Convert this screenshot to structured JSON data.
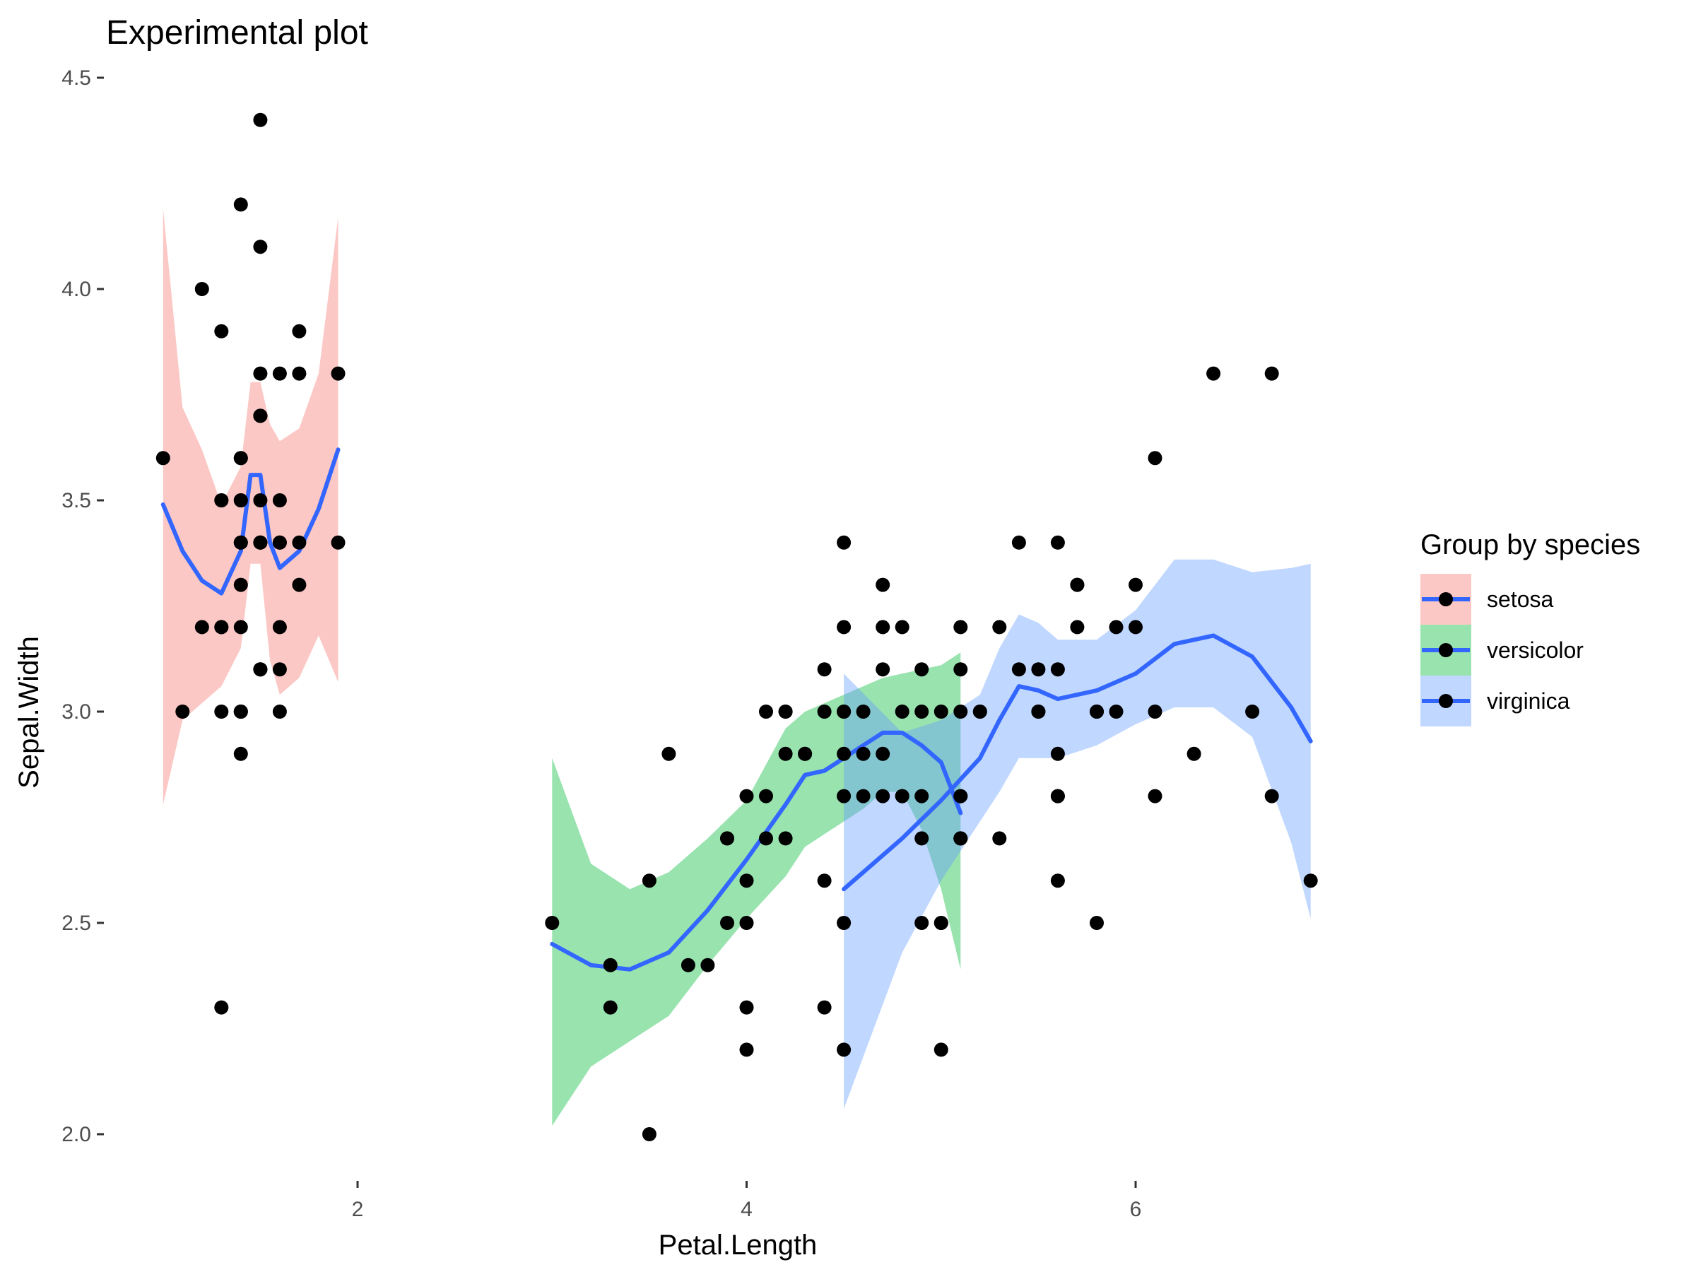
{
  "chart_data": {
    "type": "scatter",
    "title": "Experimental plot",
    "xlabel": "Petal.Length",
    "ylabel": "Sepal.Width",
    "xlim": [
      0.7,
      7.1
    ],
    "ylim": [
      1.9,
      4.55
    ],
    "x_ticks": [
      2,
      4,
      6
    ],
    "y_ticks": [
      2.0,
      2.5,
      3.0,
      3.5,
      4.0,
      4.5
    ],
    "x_tick_labels": [
      "2",
      "4",
      "6"
    ],
    "y_tick_labels": [
      "2.0",
      "2.5",
      "3.0",
      "3.5",
      "4.0",
      "4.5"
    ],
    "grid": false,
    "legend": {
      "title": "Group by species",
      "position": "right"
    },
    "colors": {
      "point": "#000000",
      "smooth_line": "#3366FF"
    },
    "series": [
      {
        "name": "setosa",
        "fill": "#F8766D",
        "points": [
          [
            1.4,
            3.5
          ],
          [
            1.4,
            3.0
          ],
          [
            1.3,
            3.2
          ],
          [
            1.5,
            3.1
          ],
          [
            1.4,
            3.6
          ],
          [
            1.7,
            3.9
          ],
          [
            1.4,
            3.4
          ],
          [
            1.5,
            3.4
          ],
          [
            1.4,
            2.9
          ],
          [
            1.5,
            3.1
          ],
          [
            1.5,
            3.7
          ],
          [
            1.6,
            3.4
          ],
          [
            1.4,
            3.0
          ],
          [
            1.1,
            3.0
          ],
          [
            1.2,
            4.0
          ],
          [
            1.5,
            4.4
          ],
          [
            1.3,
            3.9
          ],
          [
            1.4,
            3.5
          ],
          [
            1.7,
            3.8
          ],
          [
            1.5,
            3.8
          ],
          [
            1.7,
            3.4
          ],
          [
            1.5,
            3.7
          ],
          [
            1.0,
            3.6
          ],
          [
            1.7,
            3.3
          ],
          [
            1.9,
            3.4
          ],
          [
            1.6,
            3.0
          ],
          [
            1.6,
            3.4
          ],
          [
            1.5,
            3.5
          ],
          [
            1.4,
            3.4
          ],
          [
            1.6,
            3.2
          ],
          [
            1.6,
            3.1
          ],
          [
            1.5,
            3.4
          ],
          [
            1.5,
            4.1
          ],
          [
            1.4,
            4.2
          ],
          [
            1.5,
            3.1
          ],
          [
            1.2,
            3.2
          ],
          [
            1.3,
            3.5
          ],
          [
            1.4,
            3.6
          ],
          [
            1.3,
            3.0
          ],
          [
            1.5,
            3.4
          ],
          [
            1.3,
            3.5
          ],
          [
            1.3,
            2.3
          ],
          [
            1.3,
            3.2
          ],
          [
            1.6,
            3.5
          ],
          [
            1.9,
            3.8
          ],
          [
            1.4,
            3.0
          ],
          [
            1.6,
            3.8
          ],
          [
            1.4,
            3.2
          ],
          [
            1.5,
            3.7
          ],
          [
            1.4,
            3.3
          ]
        ],
        "smooth": [
          [
            1.0,
            3.49
          ],
          [
            1.1,
            3.38
          ],
          [
            1.2,
            3.31
          ],
          [
            1.3,
            3.28
          ],
          [
            1.4,
            3.38
          ],
          [
            1.45,
            3.56
          ],
          [
            1.5,
            3.56
          ],
          [
            1.55,
            3.4
          ],
          [
            1.6,
            3.34
          ],
          [
            1.7,
            3.38
          ],
          [
            1.8,
            3.48
          ],
          [
            1.9,
            3.62
          ]
        ],
        "band_upper": [
          [
            1.0,
            4.19
          ],
          [
            1.1,
            3.72
          ],
          [
            1.2,
            3.62
          ],
          [
            1.3,
            3.49
          ],
          [
            1.4,
            3.58
          ],
          [
            1.45,
            3.78
          ],
          [
            1.5,
            3.78
          ],
          [
            1.55,
            3.68
          ],
          [
            1.6,
            3.64
          ],
          [
            1.7,
            3.67
          ],
          [
            1.8,
            3.8
          ],
          [
            1.9,
            4.17
          ]
        ],
        "band_lower": [
          [
            1.0,
            2.78
          ],
          [
            1.1,
            2.98
          ],
          [
            1.2,
            3.02
          ],
          [
            1.3,
            3.06
          ],
          [
            1.4,
            3.15
          ],
          [
            1.45,
            3.35
          ],
          [
            1.5,
            3.35
          ],
          [
            1.55,
            3.12
          ],
          [
            1.6,
            3.04
          ],
          [
            1.7,
            3.08
          ],
          [
            1.8,
            3.18
          ],
          [
            1.9,
            3.07
          ]
        ]
      },
      {
        "name": "versicolor",
        "fill": "#00BA38",
        "points": [
          [
            4.7,
            3.2
          ],
          [
            4.5,
            3.2
          ],
          [
            4.9,
            3.1
          ],
          [
            4.0,
            2.3
          ],
          [
            4.6,
            2.8
          ],
          [
            4.5,
            2.8
          ],
          [
            4.7,
            3.3
          ],
          [
            3.3,
            2.4
          ],
          [
            4.6,
            2.9
          ],
          [
            3.9,
            2.7
          ],
          [
            3.5,
            2.0
          ],
          [
            4.2,
            3.0
          ],
          [
            4.0,
            2.2
          ],
          [
            4.7,
            2.9
          ],
          [
            3.6,
            2.9
          ],
          [
            4.4,
            3.1
          ],
          [
            4.5,
            3.0
          ],
          [
            4.1,
            2.7
          ],
          [
            4.5,
            2.2
          ],
          [
            3.9,
            2.5
          ],
          [
            4.8,
            3.2
          ],
          [
            4.0,
            2.8
          ],
          [
            4.9,
            2.5
          ],
          [
            4.7,
            2.8
          ],
          [
            4.3,
            2.9
          ],
          [
            4.4,
            3.0
          ],
          [
            4.8,
            2.8
          ],
          [
            5.0,
            3.0
          ],
          [
            4.5,
            2.9
          ],
          [
            3.5,
            2.6
          ],
          [
            3.8,
            2.4
          ],
          [
            3.7,
            2.4
          ],
          [
            3.9,
            2.7
          ],
          [
            5.1,
            2.7
          ],
          [
            4.5,
            3.0
          ],
          [
            4.5,
            3.4
          ],
          [
            4.7,
            3.1
          ],
          [
            4.4,
            2.3
          ],
          [
            4.1,
            3.0
          ],
          [
            4.0,
            2.5
          ],
          [
            4.4,
            2.6
          ],
          [
            4.6,
            3.0
          ],
          [
            4.0,
            2.6
          ],
          [
            3.3,
            2.3
          ],
          [
            4.2,
            2.7
          ],
          [
            4.2,
            3.0
          ],
          [
            4.2,
            2.9
          ],
          [
            4.3,
            2.9
          ],
          [
            3.0,
            2.5
          ],
          [
            4.1,
            2.8
          ]
        ],
        "smooth": [
          [
            3.0,
            2.45
          ],
          [
            3.2,
            2.4
          ],
          [
            3.4,
            2.39
          ],
          [
            3.6,
            2.43
          ],
          [
            3.8,
            2.53
          ],
          [
            4.0,
            2.65
          ],
          [
            4.2,
            2.78
          ],
          [
            4.3,
            2.85
          ],
          [
            4.4,
            2.86
          ],
          [
            4.5,
            2.89
          ],
          [
            4.6,
            2.92
          ],
          [
            4.7,
            2.95
          ],
          [
            4.8,
            2.95
          ],
          [
            4.9,
            2.92
          ],
          [
            5.0,
            2.88
          ],
          [
            5.1,
            2.76
          ]
        ],
        "band_upper": [
          [
            3.0,
            2.89
          ],
          [
            3.2,
            2.64
          ],
          [
            3.4,
            2.58
          ],
          [
            3.6,
            2.62
          ],
          [
            3.8,
            2.7
          ],
          [
            4.0,
            2.79
          ],
          [
            4.2,
            2.96
          ],
          [
            4.3,
            3.0
          ],
          [
            4.4,
            3.02
          ],
          [
            4.5,
            3.04
          ],
          [
            4.6,
            3.06
          ],
          [
            4.7,
            3.08
          ],
          [
            4.8,
            3.09
          ],
          [
            4.9,
            3.1
          ],
          [
            5.0,
            3.11
          ],
          [
            5.1,
            3.14
          ]
        ],
        "band_lower": [
          [
            3.0,
            2.02
          ],
          [
            3.2,
            2.16
          ],
          [
            3.4,
            2.22
          ],
          [
            3.6,
            2.28
          ],
          [
            3.8,
            2.4
          ],
          [
            4.0,
            2.51
          ],
          [
            4.2,
            2.61
          ],
          [
            4.3,
            2.68
          ],
          [
            4.4,
            2.71
          ],
          [
            4.5,
            2.74
          ],
          [
            4.6,
            2.77
          ],
          [
            4.7,
            2.81
          ],
          [
            4.8,
            2.81
          ],
          [
            4.9,
            2.72
          ],
          [
            5.0,
            2.58
          ],
          [
            5.1,
            2.39
          ]
        ]
      },
      {
        "name": "virginica",
        "fill": "#619CFF",
        "points": [
          [
            6.0,
            3.3
          ],
          [
            5.1,
            2.7
          ],
          [
            5.9,
            3.0
          ],
          [
            5.6,
            2.9
          ],
          [
            5.8,
            3.0
          ],
          [
            6.6,
            3.0
          ],
          [
            4.5,
            2.5
          ],
          [
            6.3,
            2.9
          ],
          [
            5.8,
            2.5
          ],
          [
            6.1,
            3.6
          ],
          [
            5.1,
            3.2
          ],
          [
            5.3,
            2.7
          ],
          [
            5.5,
            3.0
          ],
          [
            5.0,
            2.5
          ],
          [
            5.1,
            2.8
          ],
          [
            5.3,
            3.2
          ],
          [
            5.5,
            3.0
          ],
          [
            6.7,
            3.8
          ],
          [
            6.9,
            2.6
          ],
          [
            5.0,
            2.2
          ],
          [
            5.7,
            3.2
          ],
          [
            4.9,
            2.8
          ],
          [
            6.7,
            2.8
          ],
          [
            4.9,
            2.7
          ],
          [
            5.7,
            3.3
          ],
          [
            6.0,
            3.2
          ],
          [
            4.8,
            2.8
          ],
          [
            4.9,
            3.0
          ],
          [
            5.6,
            2.8
          ],
          [
            5.8,
            3.0
          ],
          [
            6.1,
            2.8
          ],
          [
            6.4,
            3.8
          ],
          [
            5.6,
            2.8
          ],
          [
            5.1,
            2.8
          ],
          [
            5.6,
            2.6
          ],
          [
            6.1,
            3.0
          ],
          [
            5.6,
            3.4
          ],
          [
            5.5,
            3.1
          ],
          [
            4.8,
            3.0
          ],
          [
            5.4,
            3.1
          ],
          [
            5.6,
            3.1
          ],
          [
            5.1,
            3.1
          ],
          [
            5.1,
            2.7
          ],
          [
            5.9,
            3.2
          ],
          [
            5.7,
            3.3
          ],
          [
            5.2,
            3.0
          ],
          [
            5.0,
            2.5
          ],
          [
            5.2,
            3.0
          ],
          [
            5.4,
            3.4
          ],
          [
            5.1,
            3.0
          ]
        ],
        "smooth": [
          [
            4.5,
            2.58
          ],
          [
            4.8,
            2.7
          ],
          [
            5.0,
            2.79
          ],
          [
            5.2,
            2.89
          ],
          [
            5.3,
            2.98
          ],
          [
            5.4,
            3.06
          ],
          [
            5.5,
            3.05
          ],
          [
            5.6,
            3.03
          ],
          [
            5.8,
            3.05
          ],
          [
            6.0,
            3.09
          ],
          [
            6.2,
            3.16
          ],
          [
            6.4,
            3.18
          ],
          [
            6.6,
            3.13
          ],
          [
            6.8,
            3.01
          ],
          [
            6.9,
            2.93
          ]
        ],
        "band_upper": [
          [
            4.5,
            3.09
          ],
          [
            4.8,
            2.95
          ],
          [
            5.0,
            2.98
          ],
          [
            5.2,
            3.04
          ],
          [
            5.3,
            3.15
          ],
          [
            5.4,
            3.23
          ],
          [
            5.5,
            3.21
          ],
          [
            5.6,
            3.17
          ],
          [
            5.8,
            3.17
          ],
          [
            6.0,
            3.24
          ],
          [
            6.2,
            3.36
          ],
          [
            6.4,
            3.36
          ],
          [
            6.6,
            3.33
          ],
          [
            6.8,
            3.34
          ],
          [
            6.9,
            3.35
          ]
        ],
        "band_lower": [
          [
            4.5,
            2.06
          ],
          [
            4.8,
            2.43
          ],
          [
            5.0,
            2.6
          ],
          [
            5.2,
            2.74
          ],
          [
            5.3,
            2.81
          ],
          [
            5.4,
            2.89
          ],
          [
            5.5,
            2.89
          ],
          [
            5.6,
            2.89
          ],
          [
            5.8,
            2.92
          ],
          [
            6.0,
            2.97
          ],
          [
            6.2,
            3.01
          ],
          [
            6.4,
            3.01
          ],
          [
            6.6,
            2.94
          ],
          [
            6.8,
            2.69
          ],
          [
            6.9,
            2.51
          ]
        ]
      }
    ]
  }
}
